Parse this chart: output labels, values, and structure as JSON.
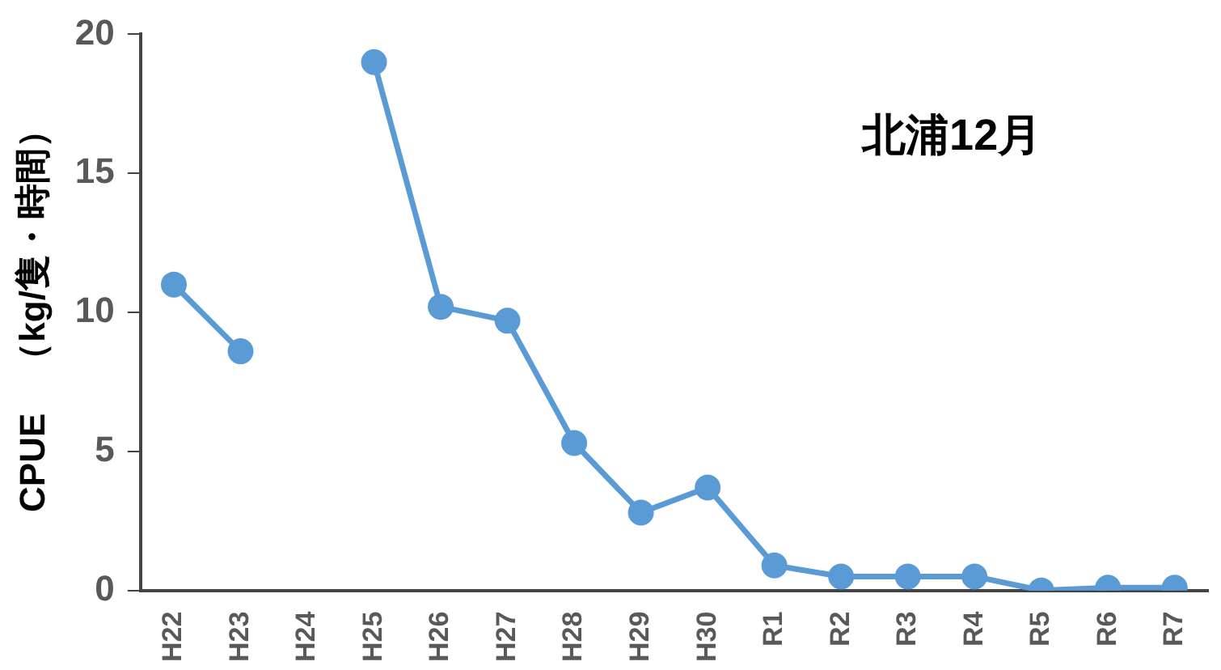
{
  "chart_data": {
    "type": "line",
    "ylabel": "CPUE　（kg/隻・時間）",
    "annotations": [
      "北浦12月"
    ],
    "categories": [
      "H22",
      "H23",
      "H24",
      "H25",
      "H26",
      "H27",
      "H28",
      "H29",
      "H30",
      "R1",
      "R2",
      "R3",
      "R4",
      "R5",
      "R6",
      "R7"
    ],
    "series": [
      {
        "color": "#5b9bd5",
        "values": [
          11.0,
          8.6,
          null,
          19.0,
          10.2,
          9.7,
          5.3,
          2.8,
          3.7,
          0.9,
          0.5,
          0.5,
          0.5,
          0,
          0.1,
          0.1
        ]
      }
    ],
    "ylim": [
      0,
      20
    ],
    "yticks": [
      0,
      5,
      10,
      15,
      20
    ],
    "grid": false,
    "legend": false,
    "marker": "circle",
    "line_style": "solid"
  }
}
